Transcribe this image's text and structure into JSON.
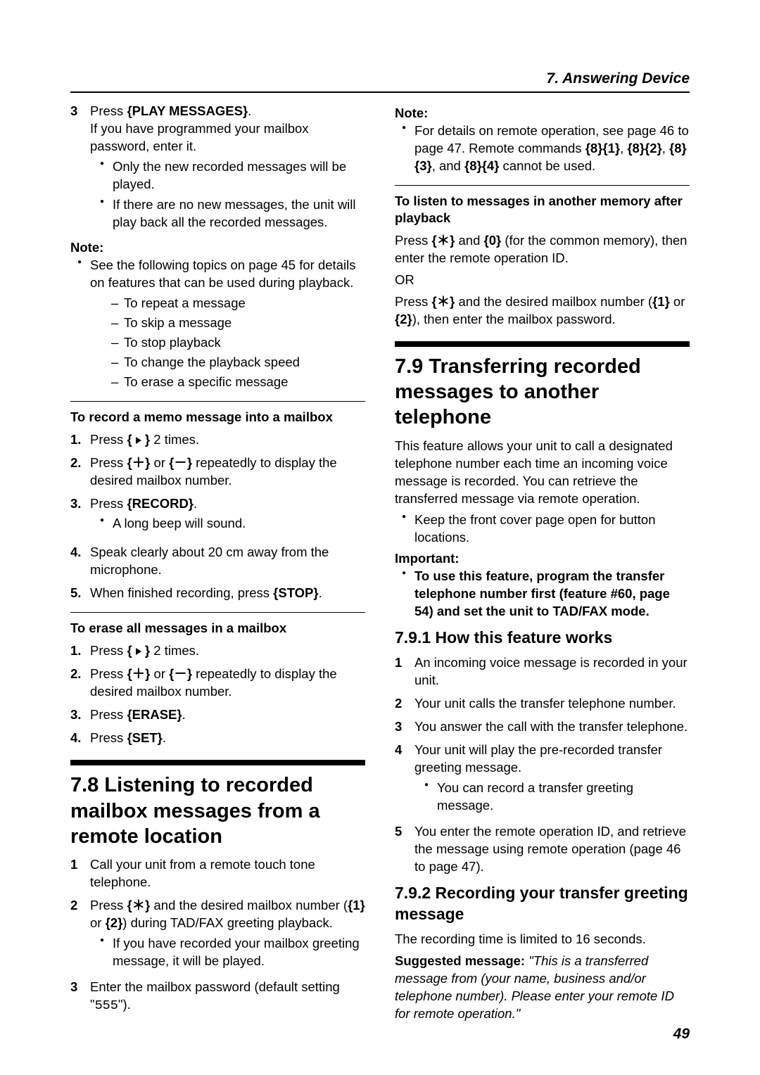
{
  "header": "7. Answering Device",
  "pageNumber": "49",
  "left": {
    "step3": {
      "num": "3",
      "text_a": "Press ",
      "key": "{PLAY MESSAGES}",
      "text_b": ".",
      "line2": "If you have programmed your mailbox password, enter it.",
      "b1": "Only the new recorded messages will be played.",
      "b2": "If there are no new messages, the unit will play back all the recorded messages."
    },
    "noteLabel": "Note:",
    "noteItem": "See the following topics on page 45 for details on features that can be used during playback.",
    "dash": {
      "d1": "To repeat a message",
      "d2": "To skip a message",
      "d3": "To stop playback",
      "d4": "To change the playback speed",
      "d5": "To erase a specific message"
    },
    "memo": {
      "title": "To record a memo message into a mailbox",
      "s1a": "Press ",
      "s1key": "{ ",
      "s1b": " }",
      "s1c": " 2 times.",
      "s2a": "Press ",
      "s2k1": "{",
      "s2k2": "}",
      "s2or": " or ",
      "s2k3": "{",
      "s2k4": "}",
      "s2b": " repeatedly to display the desired mailbox number.",
      "s3a": "Press ",
      "s3key": "{RECORD}",
      "s3b": ".",
      "s3bullet": "A long beep will sound.",
      "s4": "Speak clearly about 20 cm away from the microphone.",
      "s5a": "When finished recording, press ",
      "s5key": "{STOP}",
      "s5b": "."
    },
    "erase": {
      "title": "To erase all messages in a mailbox",
      "s1a": "Press ",
      "s1c": " 2 times.",
      "s2a": "Press ",
      "s2or": " or ",
      "s2b": " repeatedly to display the desired mailbox number.",
      "s3a": "Press ",
      "s3key": "{ERASE}",
      "s3b": ".",
      "s4a": "Press ",
      "s4key": "{SET}",
      "s4b": "."
    },
    "sec78": {
      "title": "7.8 Listening to recorded mailbox messages from a remote location",
      "s1": "Call your unit from a remote touch tone telephone.",
      "s2a": "Press ",
      "s2k": "{",
      "s2kE": "}",
      "s2b": " and the desired mailbox number (",
      "s2k1": "{1}",
      "s2or": " or ",
      "s2k2": "{2}",
      "s2c": ") during TAD/FAX greeting playback.",
      "s2bullet": "If you have recorded your mailbox greeting message, it will be played.",
      "s3a": "Enter the mailbox password (default setting \"",
      "s3code": "555",
      "s3b": "\")."
    }
  },
  "right": {
    "noteLabel": "Note:",
    "noteText_a": "For details on remote operation, see page 46 to page 47. Remote commands ",
    "k81": "{8}{1}",
    "nc1": ", ",
    "k82": "{8}{2}",
    "nc2": ", ",
    "k83": "{8}{3}",
    "nc3": ", and ",
    "k84": "{8}{4}",
    "noteText_b": " cannot be used.",
    "listen": {
      "title": "To listen to messages in another memory after playback",
      "p1a": "Press ",
      "p1k1": "{",
      "p1k1E": "}",
      "p1b": " and ",
      "p1k0": "{0}",
      "p1c": " (for the common memory), then enter the remote operation ID.",
      "or": "OR",
      "p2a": "Press ",
      "p2k": "{",
      "p2kE": "}",
      "p2b": " and the desired mailbox number (",
      "p2k1": "{1}",
      "p2or": " or ",
      "p2k2": "{2}",
      "p2c": "), then enter the mailbox password."
    },
    "sec79": {
      "title": "7.9 Transferring recorded messages to another telephone",
      "intro": "This feature allows your unit to call a designated telephone number each time an incoming voice message is recorded. You can retrieve the transferred message via remote operation.",
      "bullet": "Keep the front cover page open for button locations.",
      "impLabel": "Important:",
      "impText": "To use this feature, program the transfer telephone number first (feature #60, page 54) and set the unit to TAD/FAX mode."
    },
    "sec791": {
      "title": "7.9.1 How this feature works",
      "s1": "An incoming voice message is recorded in your unit.",
      "s2": "Your unit calls the transfer telephone number.",
      "s3": "You answer the call with the transfer telephone.",
      "s4": "Your unit will play the pre-recorded transfer greeting message.",
      "s4b": "You can record a transfer greeting message.",
      "s5": "You enter the remote operation ID, and retrieve the message using remote operation (page 46 to page 47)."
    },
    "sec792": {
      "title": "7.9.2 Recording your transfer greeting message",
      "p1": "The recording time is limited to 16 seconds.",
      "p2a": "Suggested message: ",
      "p2b": "\"This is a transferred message from (your name, business and/or telephone number). Please enter your remote ID for remote operation.\""
    }
  }
}
